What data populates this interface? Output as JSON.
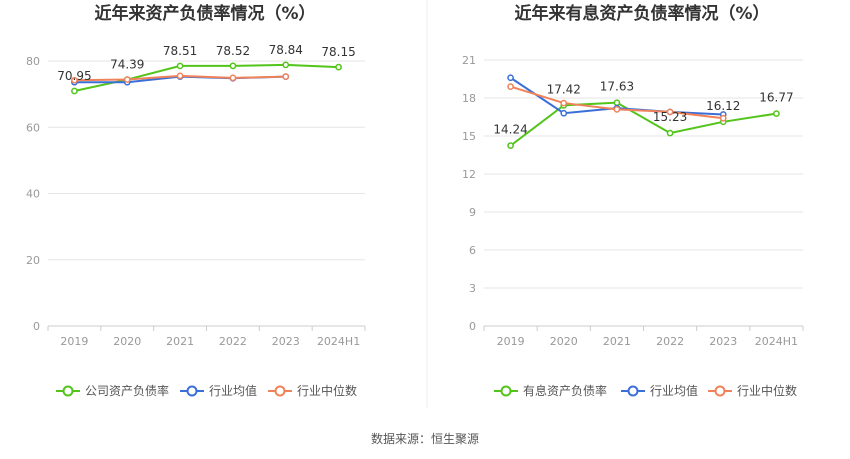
{
  "source_text": "数据来源：恒生聚源",
  "colors": {
    "company": "#52c41a",
    "avg": "#3b6fd8",
    "median": "#f0825a",
    "grid": "#e6e6e6",
    "axis": "#cccccc"
  },
  "chart_data": [
    {
      "type": "line",
      "title": "近年来资产负债率情况（%）",
      "categories": [
        "2019",
        "2020",
        "2021",
        "2022",
        "2023",
        "2024H1"
      ],
      "ylim": [
        0,
        80
      ],
      "yticks": [
        0,
        20,
        40,
        60,
        80
      ],
      "grid": true,
      "legend_position": "bottom",
      "series": [
        {
          "name": "公司资产负债率",
          "values": [
            70.95,
            74.39,
            78.51,
            78.52,
            78.84,
            78.15
          ],
          "labels": [
            "70.95",
            "74.39",
            "78.51",
            "78.52",
            "78.84",
            "78.15"
          ]
        },
        {
          "name": "行业均值",
          "values": [
            73.6,
            73.6,
            75.3,
            74.8,
            75.3,
            null
          ]
        },
        {
          "name": "行业中位数",
          "values": [
            74.2,
            74.4,
            75.5,
            74.9,
            75.3,
            null
          ]
        }
      ]
    },
    {
      "type": "line",
      "title": "近年来有息资产负债率情况（%）",
      "categories": [
        "2019",
        "2020",
        "2021",
        "2022",
        "2023",
        "2024H1"
      ],
      "ylim": [
        0,
        21
      ],
      "yticks": [
        0,
        3,
        6,
        9,
        12,
        15,
        18,
        21
      ],
      "grid": true,
      "legend_position": "bottom",
      "series": [
        {
          "name": "有息资产负债率",
          "values": [
            14.24,
            17.42,
            17.63,
            15.23,
            16.12,
            16.77
          ],
          "labels": [
            "14.24",
            "17.42",
            "17.63",
            "15.23",
            "16.12",
            "16.77"
          ]
        },
        {
          "name": "行业均值",
          "values": [
            19.6,
            16.8,
            17.2,
            16.9,
            16.7,
            null
          ]
        },
        {
          "name": "行业中位数",
          "values": [
            18.9,
            17.6,
            17.1,
            16.9,
            16.4,
            null
          ]
        }
      ]
    }
  ]
}
